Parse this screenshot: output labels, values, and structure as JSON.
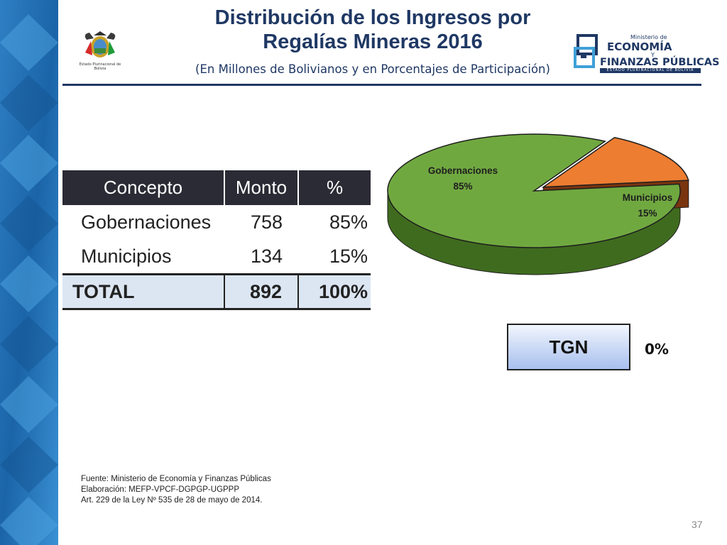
{
  "header": {
    "title_line1": "Distribución de los Ingresos por",
    "title_line2": "Regalías Mineras 2016",
    "subtitle": "(En Millones de Bolivianos y en Porcentajes de Participación)",
    "shield_caption": "Estado Plurinacional de Bolivia",
    "logo": {
      "line1": "Ministerio de",
      "line2": "ECONOMÍA",
      "line3": "Y",
      "line4": "FINANZAS PÚBLICAS",
      "line5": "ESTADO PLURINACIONAL DE BOLIVIA"
    }
  },
  "table": {
    "headers": [
      "Concepto",
      "Monto",
      "%"
    ],
    "rows": [
      {
        "concept": "Gobernaciones",
        "amount": "758",
        "percent": "85%"
      },
      {
        "concept": "Municipios",
        "amount": "134",
        "percent": "15%"
      }
    ],
    "total": {
      "concept": "TOTAL",
      "amount": "892",
      "percent": "100%"
    }
  },
  "chart_data": {
    "type": "pie",
    "title": "",
    "slices": [
      {
        "name": "Gobernaciones",
        "value": 85,
        "label": "85%",
        "color": "#70a840"
      },
      {
        "name": "Municipios",
        "value": 15,
        "label": "15%",
        "color": "#ed7d31"
      }
    ],
    "exploded": "Municipios",
    "style": "3d",
    "colors": {
      "gobernaciones_side": "#3f6b1f",
      "municipios_side": "#7a3410",
      "outline": "#1e1e1e"
    }
  },
  "tgn": {
    "label": "TGN",
    "value": "0%"
  },
  "footer": {
    "source": "Fuente: Ministerio de Economía y Finanzas Públicas",
    "elaboration": "Elaboración: MEFP-VPCF-DGPGP-UGPPP",
    "legal": "Art. 229 de la Ley Nº 535 de 28 de mayo de 2014.",
    "page_number": "37"
  },
  "colors": {
    "title": "#1f3864",
    "stripe_dark": "#1a5fa0",
    "stripe_light": "#3f95d6"
  }
}
